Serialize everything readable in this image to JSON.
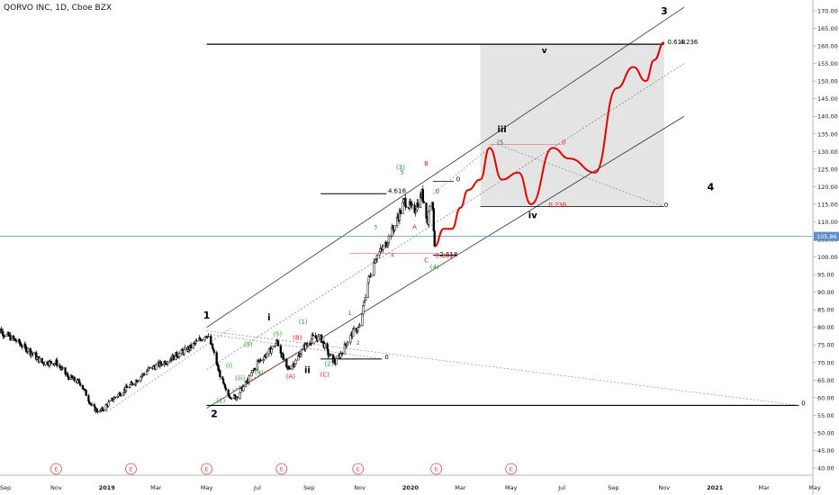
{
  "chart_data": {
    "type": "candlestick",
    "title": "QORVO INC, 1D, Cboe BZX",
    "ylim": [
      36,
      172
    ],
    "y_ticks": [
      "170.00",
      "165.00",
      "160.00",
      "155.00",
      "150.00",
      "145.00",
      "140.00",
      "135.00",
      "130.00",
      "125.00",
      "120.00",
      "115.00",
      "110.00",
      "105.00",
      "100.00",
      "95.00",
      "90.00",
      "85.00",
      "80.00",
      "75.00",
      "70.00",
      "65.00",
      "60.00",
      "55.00",
      "50.00",
      "45.00",
      "40.00"
    ],
    "y_tick_values": [
      170,
      165,
      160,
      155,
      150,
      145,
      140,
      135,
      130,
      125,
      120,
      115,
      110,
      105,
      100,
      95,
      90,
      85,
      80,
      75,
      70,
      65,
      60,
      55,
      50,
      45,
      40
    ],
    "x_ticks": [
      "Sep",
      "Nov",
      "2019",
      "Mar",
      "May",
      "Jul",
      "Sep",
      "Nov",
      "2020",
      "Mar",
      "May",
      "Jul",
      "Sep",
      "Nov",
      "2021",
      "Mar",
      "May"
    ],
    "x_tick_dates": [
      "2018-09-01",
      "2018-11-01",
      "2019-01-01",
      "2019-03-01",
      "2019-05-01",
      "2019-07-01",
      "2019-09-01",
      "2019-11-01",
      "2020-01-01",
      "2020-03-01",
      "2020-05-01",
      "2020-07-01",
      "2020-09-01",
      "2020-11-01",
      "2021-01-01",
      "2021-03-01",
      "2021-05-01"
    ],
    "current_price": {
      "label": "105.86",
      "value": 105.86
    },
    "price_series": [
      [
        "2018-08-20",
        80
      ],
      [
        "2018-09-01",
        78
      ],
      [
        "2018-09-15",
        76
      ],
      [
        "2018-10-01",
        73
      ],
      [
        "2018-10-15",
        70
      ],
      [
        "2018-11-01",
        70
      ],
      [
        "2018-11-15",
        66
      ],
      [
        "2018-12-01",
        64
      ],
      [
        "2018-12-15",
        57
      ],
      [
        "2018-12-24",
        56
      ],
      [
        "2019-01-10",
        60
      ],
      [
        "2019-02-01",
        64
      ],
      [
        "2019-02-20",
        68
      ],
      [
        "2019-03-10",
        70
      ],
      [
        "2019-03-25",
        72
      ],
      [
        "2019-04-10",
        74
      ],
      [
        "2019-04-25",
        77
      ],
      [
        "2019-05-01",
        78
      ],
      [
        "2019-05-08",
        74
      ],
      [
        "2019-05-15",
        68
      ],
      [
        "2019-05-25",
        61
      ],
      [
        "2019-06-05",
        60
      ],
      [
        "2019-06-20",
        65
      ],
      [
        "2019-07-01",
        70
      ],
      [
        "2019-07-15",
        73
      ],
      [
        "2019-07-25",
        76
      ],
      [
        "2019-08-05",
        68
      ],
      [
        "2019-08-15",
        70
      ],
      [
        "2019-08-25",
        74
      ],
      [
        "2019-09-05",
        77
      ],
      [
        "2019-09-15",
        77
      ],
      [
        "2019-09-25",
        72
      ],
      [
        "2019-10-03",
        70
      ],
      [
        "2019-10-15",
        75
      ],
      [
        "2019-10-25",
        79
      ],
      [
        "2019-11-01",
        80
      ],
      [
        "2019-11-10",
        92
      ],
      [
        "2019-11-20",
        100
      ],
      [
        "2019-12-01",
        103
      ],
      [
        "2019-12-15",
        110
      ],
      [
        "2019-12-25",
        116
      ],
      [
        "2020-01-05",
        113
      ],
      [
        "2020-01-15",
        118
      ],
      [
        "2020-01-22",
        110
      ],
      [
        "2020-01-26",
        121
      ],
      [
        "2020-01-30",
        104
      ]
    ],
    "projection_series": [
      [
        "2020-01-30",
        103
      ],
      [
        "2020-02-10",
        108
      ],
      [
        "2020-02-20",
        108
      ],
      [
        "2020-03-01",
        114
      ],
      [
        "2020-03-10",
        119
      ],
      [
        "2020-03-25",
        122
      ],
      [
        "2020-04-05",
        131
      ],
      [
        "2020-04-20",
        122
      ],
      [
        "2020-05-10",
        124
      ],
      [
        "2020-05-25",
        115
      ],
      [
        "2020-06-20",
        131
      ],
      [
        "2020-07-10",
        128
      ],
      [
        "2020-08-10",
        124
      ],
      [
        "2020-09-05",
        148
      ],
      [
        "2020-09-25",
        154
      ],
      [
        "2020-10-10",
        150
      ],
      [
        "2020-10-20",
        156
      ],
      [
        "2020-11-01",
        161
      ]
    ],
    "wave_labels": [
      {
        "text": "1",
        "date": "2019-05-01",
        "price": 82.5,
        "color": "#000000",
        "size": 11,
        "weight": "bold"
      },
      {
        "text": "2",
        "date": "2019-05-10",
        "price": 54.5,
        "color": "#000000",
        "size": 11,
        "weight": "bold"
      },
      {
        "text": "3",
        "date": "2020-11-01",
        "price": 169,
        "color": "#000000",
        "size": 11,
        "weight": "bold"
      },
      {
        "text": "4",
        "date": "2020-12-27",
        "price": 119,
        "color": "#000000",
        "size": 11,
        "weight": "bold"
      },
      {
        "text": "i",
        "date": "2019-07-15",
        "price": 82,
        "color": "#000000",
        "size": 10,
        "weight": "bold"
      },
      {
        "text": "ii",
        "date": "2019-08-30",
        "price": 67,
        "color": "#000000",
        "size": 10,
        "weight": "bold"
      },
      {
        "text": "iii",
        "date": "2020-04-20",
        "price": 135.5,
        "color": "#000000",
        "size": 10,
        "weight": "bold"
      },
      {
        "text": "iv",
        "date": "2020-05-27",
        "price": 111,
        "color": "#000000",
        "size": 10,
        "weight": "bold"
      },
      {
        "text": "v",
        "date": "2020-06-10",
        "price": 158,
        "color": "#000000",
        "size": 9,
        "weight": "bold"
      },
      {
        "text": "(1)",
        "date": "2019-08-25",
        "price": 81,
        "color": "#22a022",
        "size": 7,
        "weight": "normal"
      },
      {
        "text": "(2)",
        "date": "2019-05-18",
        "price": 58.5,
        "color": "#22a022",
        "size": 7,
        "weight": "normal"
      },
      {
        "text": "(3)",
        "date": "2019-06-20",
        "price": 74.5,
        "color": "#22a022",
        "size": 7,
        "weight": "normal"
      },
      {
        "text": "(4)",
        "date": "2019-07-03",
        "price": 66.5,
        "color": "#22a022",
        "size": 7,
        "weight": "normal"
      },
      {
        "text": "(5)",
        "date": "2019-07-25",
        "price": 77.5,
        "color": "#22a022",
        "size": 7,
        "weight": "normal"
      },
      {
        "text": "(i)",
        "date": "2019-05-28",
        "price": 68.5,
        "color": "#22a022",
        "size": 7,
        "weight": "normal"
      },
      {
        "text": "(iii)",
        "date": "2019-06-10",
        "price": 65,
        "color": "#22a022",
        "size": 7,
        "weight": "normal"
      },
      {
        "text": "(2)",
        "date": "2019-09-25",
        "price": 69,
        "color": "#22a022",
        "size": 7,
        "weight": "normal"
      },
      {
        "text": "(3)",
        "date": "2019-12-20",
        "price": 125,
        "color": "#22a022",
        "size": 7,
        "weight": "normal"
      },
      {
        "text": "(4)",
        "date": "2020-01-30",
        "price": 96.5,
        "color": "#22a022",
        "size": 7,
        "weight": "normal"
      },
      {
        "text": "(A)",
        "date": "2019-08-10",
        "price": 65.5,
        "color": "#e02020",
        "size": 7,
        "weight": "normal"
      },
      {
        "text": "(B)",
        "date": "2019-08-18",
        "price": 76.5,
        "color": "#e02020",
        "size": 7,
        "weight": "normal"
      },
      {
        "text": "(C)",
        "date": "2019-09-20",
        "price": 66,
        "color": "#e02020",
        "size": 7,
        "weight": "normal"
      },
      {
        "text": "B",
        "date": "2020-01-20",
        "price": 126,
        "color": "#e02020",
        "size": 7,
        "weight": "normal"
      },
      {
        "text": "A",
        "date": "2020-01-06",
        "price": 108,
        "color": "#e02020",
        "size": 7,
        "weight": "normal"
      },
      {
        "text": "C",
        "date": "2020-01-20",
        "price": 98.5,
        "color": "#e02020",
        "size": 7,
        "weight": "normal"
      },
      {
        "text": "3",
        "date": "2019-11-20",
        "price": 108,
        "color": "#2a6f97",
        "size": 6,
        "weight": "normal"
      },
      {
        "text": "4",
        "date": "2019-12-10",
        "price": 100,
        "color": "#2a6f97",
        "size": 6,
        "weight": "normal"
      },
      {
        "text": "5",
        "date": "2019-12-22",
        "price": 123.5,
        "color": "#2a6f97",
        "size": 7,
        "weight": "normal"
      },
      {
        "text": "1",
        "date": "2019-10-20",
        "price": 83.5,
        "color": "#555555",
        "size": 6,
        "weight": "normal"
      },
      {
        "text": "2",
        "date": "2019-10-30",
        "price": 75,
        "color": "#555555",
        "size": 6,
        "weight": "normal"
      }
    ],
    "fib_labels": [
      {
        "text": "0.618",
        "date": "2020-11-05",
        "price": 160.5,
        "color": "#000000"
      },
      {
        "text": "4.236",
        "date": "2020-11-20",
        "price": 160.5,
        "color": "#000000"
      },
      {
        "text": "4.618",
        "date": "2019-12-05",
        "price": 118.2,
        "color": "#000000"
      },
      {
        "text": "2.618",
        "date": "2020-02-05",
        "price": 100.2,
        "color": "#000000"
      },
      {
        "text": "0.382",
        "date": "2020-01-31",
        "price": 99.7,
        "color": "#e02020"
      },
      {
        "text": "0.236",
        "date": "2020-06-15",
        "price": 114.2,
        "color": "#e02020"
      },
      {
        "text": "0",
        "date": "2020-02-25",
        "price": 121.5,
        "color": "#000000"
      },
      {
        "text": "0",
        "date": "2020-01-31",
        "price": 118,
        "color": "#e02020"
      },
      {
        "text": "0",
        "date": "2020-07-01",
        "price": 132,
        "color": "#e02020"
      },
      {
        "text": "0",
        "date": "2020-11-01",
        "price": 114.2,
        "color": "#000000"
      },
      {
        "text": "0",
        "date": "2019-12-01",
        "price": 71,
        "color": "#000000"
      },
      {
        "text": "0",
        "date": "2021-04-15",
        "price": 57.8,
        "color": "#000000"
      },
      {
        "text": "(5",
        "date": "2020-04-14",
        "price": 132,
        "color": "#555555"
      }
    ],
    "event_markers": [
      "E",
      "E",
      "E",
      "E",
      "E",
      "E",
      "E"
    ],
    "event_dates": [
      "2018-11-01",
      "2019-01-30",
      "2019-05-01",
      "2019-07-30",
      "2019-10-30",
      "2020-02-01",
      "2020-05-01"
    ],
    "colors": {
      "candle": "#000000",
      "projection": "#e00000",
      "channel": "#333333",
      "box": "#e4e4e4",
      "price_line": "#5d8fc6",
      "event": "#e24a4a",
      "red_level": "#e88080"
    }
  }
}
